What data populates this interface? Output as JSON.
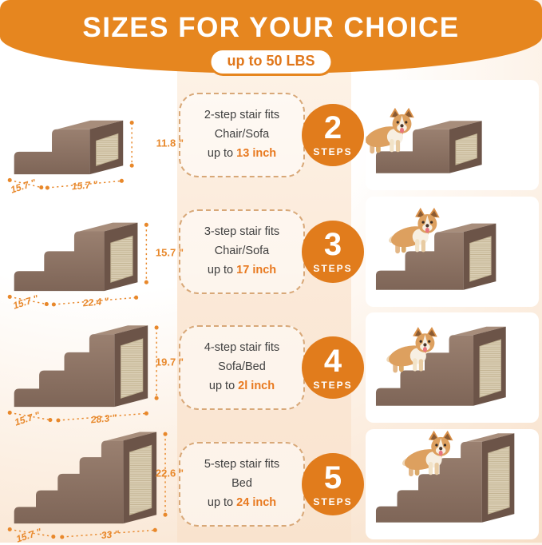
{
  "header": {
    "title": "SIZES FOR YOUR CHOICE",
    "badge": "up to 50 LBS"
  },
  "colors": {
    "banner_orange": "#E6861F",
    "circle_orange": "#E17C1C",
    "highlight_orange": "#E8791F",
    "dimension_orange": "#E8882B",
    "dashed_border": "#D8A878",
    "card_text": "#404040",
    "peach_background": "#F9E3CE",
    "stair_brown": "#8C7163"
  },
  "rows": [
    {
      "steps": 2,
      "steps_label": "2",
      "steps_word": "STEPS",
      "fits_line1": "2-step stair fits",
      "fits_line2": "Chair/Sofa",
      "fits_prefix": "up to ",
      "fits_highlight": "13 inch",
      "dim_height": "11.8 \"",
      "dim_depth": "15.7 \"",
      "dim_width": "15.7 \""
    },
    {
      "steps": 3,
      "steps_label": "3",
      "steps_word": "STEPS",
      "fits_line1": "3-step stair fits",
      "fits_line2": "Chair/Sofa",
      "fits_prefix": "up to ",
      "fits_highlight": "17 inch",
      "dim_height": "15.7 \"",
      "dim_depth": "15.7 \"",
      "dim_width": "22.4 \""
    },
    {
      "steps": 4,
      "steps_label": "4",
      "steps_word": "STEPS",
      "fits_line1": "4-step stair fits",
      "fits_line2": "Sofa/Bed",
      "fits_prefix": "up to ",
      "fits_highlight": "2l inch",
      "dim_height": "19.7 \"",
      "dim_depth": "15.7 \"",
      "dim_width": "28.3 \""
    },
    {
      "steps": 5,
      "steps_label": "5",
      "steps_word": "STEPS",
      "fits_line1": "5-step stair fits",
      "fits_line2": "Bed",
      "fits_prefix": "up to ",
      "fits_highlight": "24 inch",
      "dim_height": "22.6 \"",
      "dim_depth": "15.7 \"",
      "dim_width": "33 \""
    }
  ]
}
